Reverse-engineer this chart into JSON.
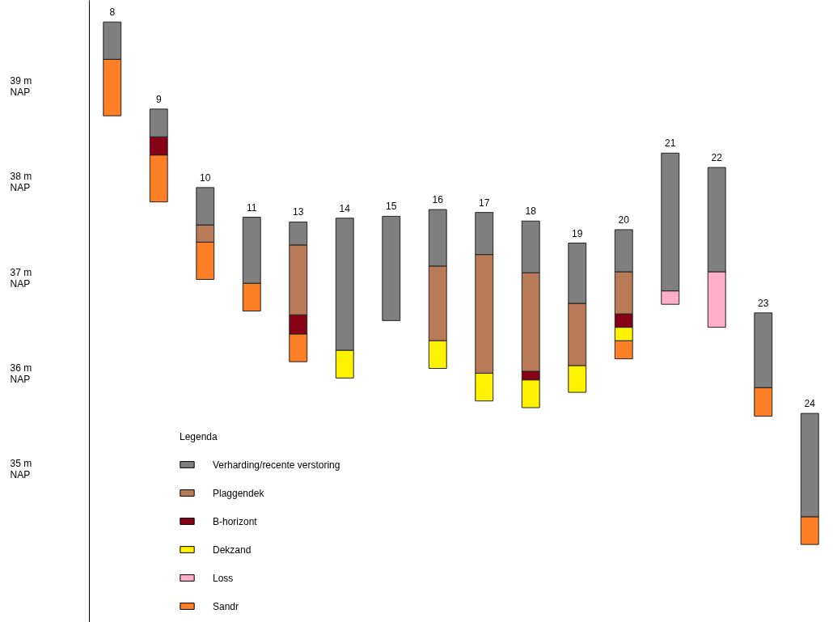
{
  "chart_data": {
    "type": "bar",
    "legend": "bottom left",
    "legend_title": "Legenda",
    "categories": [
      "8",
      "9",
      "10",
      "11",
      "13",
      "14",
      "15",
      "16",
      "17",
      "18",
      "19",
      "20",
      "21",
      "22",
      "23",
      "24"
    ],
    "series": [
      {
        "name": "Sandr",
        "color": "#ff7f27",
        "values": [
          0.59,
          0.49,
          0.39,
          0.29,
          0.29,
          null,
          null,
          null,
          null,
          null,
          null,
          0.19,
          null,
          null,
          0.3,
          0.29
        ],
        "base": [
          38.69,
          37.79,
          36.98,
          36.65,
          36.12,
          null,
          null,
          null,
          null,
          null,
          null,
          36.15,
          null,
          null,
          35.55,
          34.21
        ]
      },
      {
        "name": "Loss",
        "color": "#ffaec9",
        "values": [
          null,
          null,
          null,
          null,
          null,
          null,
          null,
          null,
          null,
          null,
          null,
          null,
          0.14,
          0.58,
          null,
          null
        ],
        "base": [
          null,
          null,
          null,
          null,
          null,
          null,
          null,
          null,
          null,
          null,
          null,
          null,
          36.72,
          36.48,
          null,
          null
        ]
      },
      {
        "name": "Dekzand",
        "color": "#fff200",
        "values": [
          null,
          null,
          null,
          null,
          null,
          0.29,
          null,
          0.29,
          0.29,
          0.29,
          0.28,
          0.14,
          null,
          null,
          null,
          null
        ],
        "base": [
          null,
          null,
          null,
          null,
          null,
          35.95,
          null,
          36.05,
          35.71,
          35.64,
          35.8,
          36.34,
          null,
          null,
          null,
          null
        ]
      },
      {
        "name": "B-horizont",
        "color": "#880015",
        "values": [
          null,
          0.19,
          null,
          null,
          0.2,
          null,
          null,
          null,
          null,
          0.09,
          null,
          0.14,
          null,
          null,
          null,
          null
        ],
        "base": [
          null,
          38.28,
          null,
          null,
          36.41,
          null,
          null,
          null,
          null,
          35.93,
          null,
          36.48,
          null,
          null,
          null,
          null
        ]
      },
      {
        "name": "Plaggendek",
        "color": "#b97a57",
        "values": [
          null,
          null,
          0.18,
          null,
          0.73,
          null,
          null,
          0.78,
          1.24,
          1.03,
          0.65,
          0.44,
          null,
          null,
          null,
          null
        ],
        "base": [
          null,
          null,
          37.37,
          null,
          36.61,
          null,
          null,
          36.34,
          36.0,
          36.02,
          36.08,
          36.62,
          null,
          null,
          null,
          null
        ]
      },
      {
        "name": "Verharding/recente verstoring",
        "color": "#7f7f7f",
        "values": [
          0.39,
          0.29,
          0.39,
          0.69,
          0.24,
          1.38,
          1.09,
          0.59,
          0.44,
          0.54,
          0.63,
          0.44,
          1.44,
          1.09,
          0.78,
          1.08
        ],
        "base": [
          39.28,
          38.47,
          37.55,
          36.94,
          37.34,
          36.24,
          36.55,
          37.12,
          37.24,
          37.05,
          36.73,
          37.06,
          36.86,
          37.06,
          35.85,
          34.5
        ]
      }
    ],
    "ylim": [
      33.4,
      39.9
    ],
    "yticks": [
      {
        "value": 35,
        "label": "35 m NAP"
      },
      {
        "value": 36,
        "label": "36 m NAP"
      },
      {
        "value": 37,
        "label": "37 m NAP"
      },
      {
        "value": 38,
        "label": "38 m NAP"
      },
      {
        "value": 39,
        "label": "39 m NAP"
      }
    ]
  }
}
